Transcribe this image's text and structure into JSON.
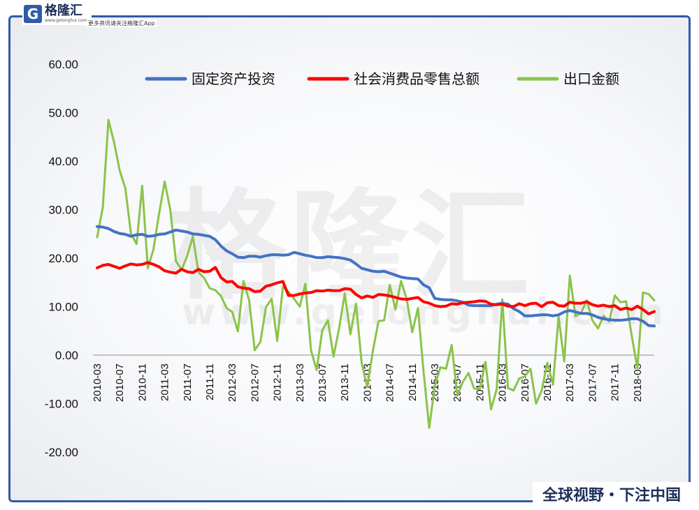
{
  "branding": {
    "logo_mark": "G",
    "logo_name": "格隆汇",
    "logo_url": "www.gelonghui.com",
    "logo_tagline": "更多资讯请关注格隆汇App",
    "watermark_text": "格隆汇",
    "watermark_url": "www.gelonghui.com",
    "footer_tag": "全球视野・下注中国",
    "frame_color": "#2f5aa8"
  },
  "chart_data": {
    "type": "line",
    "title": "",
    "xlabel": "",
    "ylabel": "",
    "ylim": [
      -20,
      60
    ],
    "yticks": [
      -20,
      -10,
      0,
      10,
      20,
      30,
      40,
      50,
      60
    ],
    "ytick_labels": [
      "-20.00",
      "-10.00",
      "0.00",
      "10.00",
      "20.00",
      "30.00",
      "40.00",
      "50.00",
      "60.00"
    ],
    "grid": false,
    "legend_position": "top",
    "categories": [
      "2010-03",
      "2010-04",
      "2010-05",
      "2010-06",
      "2010-07",
      "2010-08",
      "2010-09",
      "2010-10",
      "2010-11",
      "2010-12",
      "2011-01",
      "2011-02",
      "2011-03",
      "2011-04",
      "2011-05",
      "2011-06",
      "2011-07",
      "2011-08",
      "2011-09",
      "2011-10",
      "2011-11",
      "2011-12",
      "2012-01",
      "2012-02",
      "2012-03",
      "2012-04",
      "2012-05",
      "2012-06",
      "2012-07",
      "2012-08",
      "2012-09",
      "2012-10",
      "2012-11",
      "2012-12",
      "2013-01",
      "2013-02",
      "2013-03",
      "2013-04",
      "2013-05",
      "2013-06",
      "2013-07",
      "2013-08",
      "2013-09",
      "2013-10",
      "2013-11",
      "2013-12",
      "2014-01",
      "2014-02",
      "2014-03",
      "2014-04",
      "2014-05",
      "2014-06",
      "2014-07",
      "2014-08",
      "2014-09",
      "2014-10",
      "2014-11",
      "2014-12",
      "2015-01",
      "2015-02",
      "2015-03",
      "2015-04",
      "2015-05",
      "2015-06",
      "2015-07",
      "2015-08",
      "2015-09",
      "2015-10",
      "2015-11",
      "2015-12",
      "2016-01",
      "2016-02",
      "2016-03",
      "2016-04",
      "2016-05",
      "2016-06",
      "2016-07",
      "2016-08",
      "2016-09",
      "2016-10",
      "2016-11",
      "2016-12",
      "2017-01",
      "2017-02",
      "2017-03",
      "2017-04",
      "2017-05",
      "2017-06",
      "2017-07",
      "2017-08",
      "2017-09",
      "2017-10",
      "2017-11",
      "2017-12",
      "2018-01",
      "2018-02",
      "2018-03",
      "2018-04",
      "2018-05",
      "2018-06"
    ],
    "xtick_labels": [
      "2010-03",
      "2010-07",
      "2010-11",
      "2011-03",
      "2011-07",
      "2011-11",
      "2012-03",
      "2012-07",
      "2012-11",
      "2013-03",
      "2013-07",
      "2013-11",
      "2014-03",
      "2014-07",
      "2014-11",
      "2015-03",
      "2015-07",
      "2015-11",
      "2016-03",
      "2016-07",
      "2016-11",
      "2017-03",
      "2017-07",
      "2017-11",
      "2018-03"
    ],
    "series": [
      {
        "name": "固定资产投资",
        "color": "#4472c4",
        "values": [
          26.5,
          26.4,
          26.1,
          25.5,
          25.1,
          24.9,
          24.5,
          24.8,
          24.9,
          24.5,
          24.6,
          24.9,
          25.0,
          25.4,
          25.8,
          25.6,
          25.4,
          25.0,
          24.9,
          24.7,
          24.5,
          23.8,
          22.5,
          21.5,
          20.9,
          20.2,
          20.1,
          20.4,
          20.4,
          20.2,
          20.5,
          20.7,
          20.7,
          20.6,
          20.7,
          21.2,
          20.9,
          20.6,
          20.4,
          20.1,
          20.1,
          20.3,
          20.2,
          20.1,
          19.9,
          19.6,
          18.8,
          17.9,
          17.6,
          17.3,
          17.2,
          17.3,
          16.9,
          16.5,
          16.1,
          15.9,
          15.8,
          15.7,
          14.5,
          13.9,
          11.7,
          11.5,
          11.4,
          11.4,
          11.2,
          10.9,
          10.3,
          10.2,
          10.2,
          10.2,
          10.2,
          10.5,
          10.7,
          10.5,
          9.6,
          9.0,
          8.1,
          8.1,
          8.2,
          8.3,
          8.3,
          8.1,
          8.3,
          8.9,
          9.2,
          8.9,
          8.6,
          8.6,
          8.3,
          7.8,
          7.5,
          7.3,
          7.2,
          7.2,
          7.3,
          7.5,
          7.5,
          7.0,
          6.1,
          6.0
        ]
      },
      {
        "name": "社会消费品零售总额",
        "color": "#ff0000",
        "values": [
          18.0,
          18.5,
          18.7,
          18.3,
          17.9,
          18.4,
          18.8,
          18.6,
          18.7,
          19.1,
          18.7,
          18.2,
          17.4,
          17.1,
          16.9,
          17.7,
          17.2,
          17.0,
          17.7,
          17.2,
          17.3,
          18.1,
          16.0,
          15.1,
          15.2,
          14.1,
          13.8,
          13.7,
          13.1,
          13.2,
          14.2,
          14.5,
          14.9,
          15.2,
          12.3,
          12.3,
          12.6,
          12.8,
          12.9,
          13.3,
          13.2,
          13.4,
          13.3,
          13.3,
          13.7,
          13.6,
          12.5,
          11.8,
          12.2,
          11.9,
          12.5,
          12.4,
          12.2,
          11.9,
          11.6,
          11.5,
          11.7,
          11.9,
          11.0,
          10.7,
          10.2,
          10.0,
          10.1,
          10.6,
          10.5,
          10.8,
          10.9,
          11.0,
          11.2,
          11.1,
          10.5,
          10.4,
          10.5,
          10.1,
          10.0,
          10.6,
          10.2,
          10.6,
          10.7,
          10.0,
          10.8,
          10.9,
          10.2,
          10.1,
          10.9,
          10.7,
          10.7,
          11.0,
          10.4,
          10.1,
          10.3,
          10.0,
          10.2,
          9.4,
          9.7,
          9.4,
          10.1,
          9.4,
          8.5,
          9.0
        ]
      },
      {
        "name": "出口金额",
        "color": "#8bc34a",
        "values": [
          24.3,
          30.5,
          48.5,
          43.9,
          38.1,
          34.4,
          25.1,
          22.9,
          34.9,
          17.9,
          21.8,
          29.2,
          35.8,
          29.9,
          19.4,
          17.6,
          20.4,
          24.5,
          17.1,
          15.9,
          13.8,
          13.4,
          12.2,
          9.7,
          8.9,
          4.9,
          15.3,
          11.3,
          1.0,
          2.7,
          9.9,
          11.6,
          2.9,
          14.1,
          13.1,
          11.6,
          10.0,
          14.7,
          1.0,
          -3.1,
          5.1,
          7.2,
          -0.3,
          5.6,
          12.7,
          4.3,
          10.6,
          -1.6,
          -6.6,
          0.9,
          7.0,
          7.2,
          14.5,
          9.4,
          15.3,
          11.6,
          4.7,
          9.7,
          -3.3,
          -15.0,
          -6.4,
          -2.5,
          -2.8,
          2.1,
          -8.3,
          -5.5,
          -3.7,
          -6.9,
          -7.0,
          -1.4,
          -11.2,
          -7.0,
          11.5,
          -6.8,
          -7.3,
          -4.8,
          -4.4,
          -2.8,
          -10.0,
          -7.3,
          -1.6,
          -6.1,
          7.9,
          -1.3,
          16.4,
          8.0,
          8.7,
          11.3,
          7.2,
          5.5,
          8.1,
          6.9,
          12.3,
          10.9,
          11.1,
          4.0,
          -2.7,
          12.9,
          12.6,
          11.3
        ]
      }
    ]
  }
}
